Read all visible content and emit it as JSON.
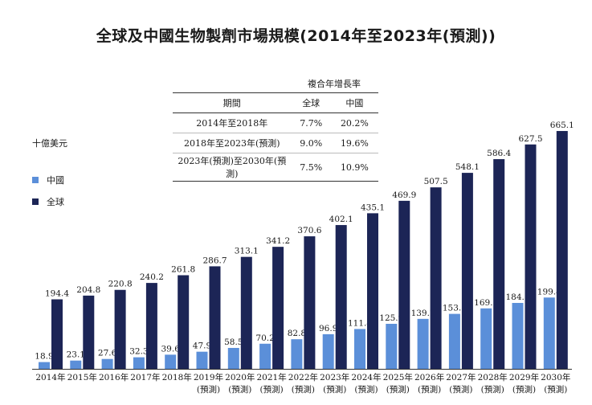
{
  "title": "全球及中國生物製劑市場規模(2014年至2023年(預測))",
  "unit_label": "十億美元",
  "colors": {
    "china": "#5b8fd9",
    "global": "#1c2556"
  },
  "legend": [
    {
      "key": "china",
      "label": "中國"
    },
    {
      "key": "global",
      "label": "全球"
    }
  ],
  "cagr_table": {
    "caption": "複合年增長率",
    "headers": [
      "期間",
      "全球",
      "中國"
    ],
    "rows": [
      [
        "2014年至2018年",
        "7.7%",
        "20.2%"
      ],
      [
        "2018年至2023年(預測)",
        "9.0%",
        "19.6%"
      ],
      [
        "2023年(預測)至2030年(預測)",
        "7.5%",
        "10.9%"
      ]
    ]
  },
  "chart_data": {
    "type": "bar",
    "categories": [
      "2014年",
      "2015年",
      "2016年",
      "2017年",
      "2018年",
      "2019年",
      "2020年",
      "2021年",
      "2022年",
      "2023年",
      "2024年",
      "2025年",
      "2026年",
      "2027年",
      "2028年",
      "2029年",
      "2030年"
    ],
    "category_sublabels": [
      "",
      "",
      "",
      "",
      "",
      "(預測)",
      "(預測)",
      "(預測)",
      "(預測)",
      "(預測)",
      "(預測)",
      "(預測)",
      "(預測)",
      "(預測)",
      "(預測)",
      "(預測)",
      "(預測)"
    ],
    "series": [
      {
        "name": "中國",
        "values": [
          18.9,
          23.1,
          27.6,
          32.3,
          39.6,
          47.9,
          58.5,
          70.2,
          82.8,
          96.9,
          111.4,
          125.9,
          139.7,
          153.7,
          169.1,
          184.3,
          199.4
        ]
      },
      {
        "name": "全球",
        "values": [
          194.4,
          204.8,
          220.8,
          240.2,
          261.8,
          286.7,
          313.1,
          341.2,
          370.6,
          402.1,
          435.1,
          469.9,
          507.5,
          548.1,
          586.4,
          627.5,
          665.1
        ]
      }
    ],
    "ylim": [
      0,
      700
    ],
    "grid": false,
    "legend_position": "left"
  }
}
